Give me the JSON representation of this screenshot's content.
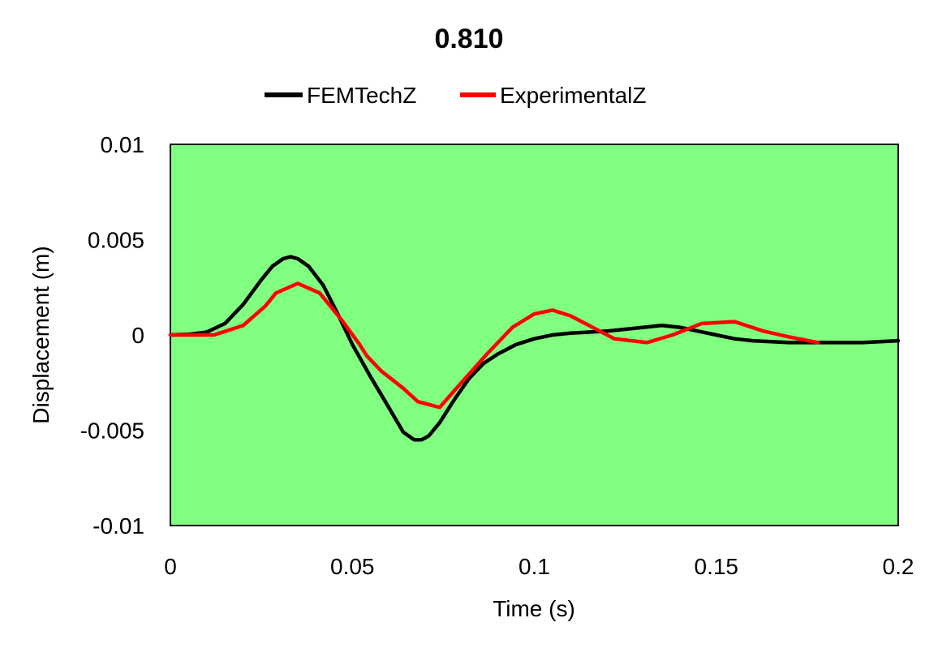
{
  "chart_data": {
    "type": "line",
    "title": "0.810",
    "xlabel": "Time (s)",
    "ylabel": "Displacement (m)",
    "xlim": [
      0,
      0.2
    ],
    "ylim": [
      -0.01,
      0.01
    ],
    "x_ticks": [
      0,
      0.05,
      0.1,
      0.15,
      0.2
    ],
    "x_tick_labels": [
      "0",
      "0.05",
      "0.1",
      "0.15",
      "0.2"
    ],
    "y_ticks": [
      0.01,
      0.005,
      0,
      -0.005,
      -0.01
    ],
    "y_tick_labels": [
      "0.01",
      "0.005",
      "0",
      "-0.005",
      "-0.01"
    ],
    "grid": false,
    "legend_position": "top",
    "plot_background": "#80ff80",
    "series": [
      {
        "name": "FEMTechZ",
        "color": "#000000",
        "x": [
          0,
          0.005,
          0.01,
          0.015,
          0.02,
          0.025,
          0.028,
          0.031,
          0.033,
          0.035,
          0.038,
          0.042,
          0.046,
          0.05,
          0.055,
          0.06,
          0.064,
          0.067,
          0.069,
          0.071,
          0.074,
          0.078,
          0.082,
          0.086,
          0.09,
          0.095,
          0.1,
          0.105,
          0.11,
          0.12,
          0.13,
          0.135,
          0.14,
          0.145,
          0.15,
          0.155,
          0.16,
          0.17,
          0.18,
          0.19,
          0.2
        ],
        "y": [
          0,
          3e-05,
          0.00015,
          0.0006,
          0.0016,
          0.0029,
          0.0036,
          0.004,
          0.0041,
          0.004,
          0.0036,
          0.0026,
          0.0011,
          -0.0005,
          -0.0022,
          -0.0038,
          -0.0051,
          -0.0055,
          -0.0055,
          -0.0053,
          -0.0046,
          -0.0034,
          -0.0023,
          -0.0015,
          -0.001,
          -0.0005,
          -0.0002,
          0,
          0.0001,
          0.0002,
          0.0004,
          0.0005,
          0.0004,
          0.0002,
          0,
          -0.0002,
          -0.0003,
          -0.0004,
          -0.0004,
          -0.0004,
          -0.0003
        ]
      },
      {
        "name": "ExperimentalZ",
        "color": "#ff0000",
        "x": [
          0,
          0.006,
          0.012,
          0.02,
          0.026,
          0.029,
          0.035,
          0.041,
          0.047,
          0.052,
          0.054,
          0.058,
          0.064,
          0.068,
          0.074,
          0.08,
          0.087,
          0.094,
          0.1,
          0.105,
          0.11,
          0.115,
          0.122,
          0.131,
          0.138,
          0.146,
          0.155,
          0.163,
          0.17,
          0.178
        ],
        "y": [
          0,
          0,
          0,
          0.0005,
          0.0015,
          0.0022,
          0.0027,
          0.0022,
          0.0008,
          -0.0005,
          -0.0011,
          -0.0019,
          -0.0028,
          -0.0035,
          -0.0038,
          -0.0025,
          -0.001,
          0.0004,
          0.0011,
          0.0013,
          0.001,
          0.0005,
          -0.0002,
          -0.0004,
          0,
          0.0006,
          0.0007,
          0.0002,
          -0.0001,
          -0.0004
        ]
      }
    ]
  }
}
